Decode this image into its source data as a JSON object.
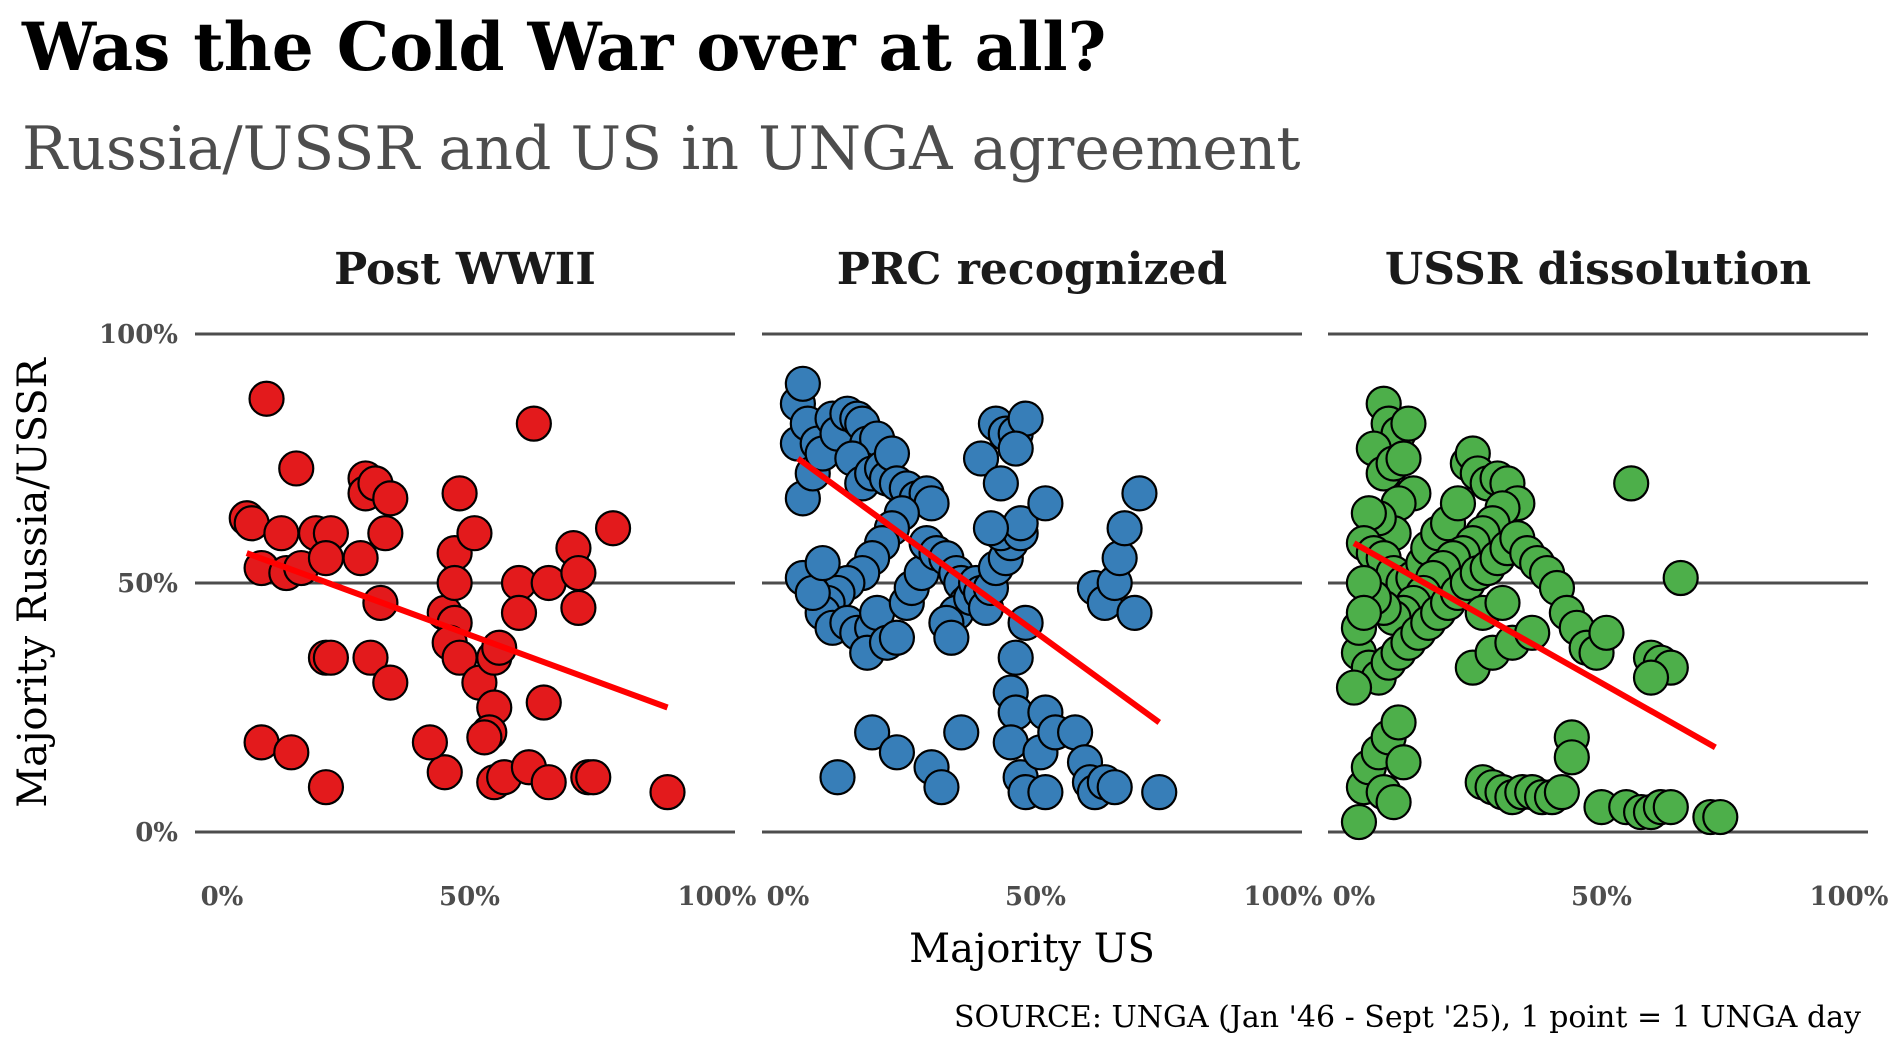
{
  "title": "Was the Cold War over at all?",
  "subtitle": "Russia/USSR and US in UNGA agreement",
  "caption": "SOURCE: UNGA (Jan '46 - Sept '25), 1 point = 1 UNGA day",
  "chart_data": {
    "type": "scatter",
    "xlabel": "Majority US",
    "ylabel": "Majority Russia/USSR",
    "xlim": [
      0,
      100
    ],
    "ylim": [
      0,
      100
    ],
    "x_ticks": [
      "0%",
      "50%",
      "100%"
    ],
    "y_ticks": [
      "0%",
      "50%",
      "100%"
    ],
    "grid": "horizontal",
    "colors": {
      "trend": "#ff0000",
      "grid": "#4d4d4d"
    },
    "panels": [
      {
        "title": "Post WWII",
        "color": "#e31a1c",
        "trend": [
          [
            5,
            56
          ],
          [
            90,
            25
          ]
        ],
        "points": [
          [
            9,
            87
          ],
          [
            5,
            63
          ],
          [
            6,
            62
          ],
          [
            15,
            73
          ],
          [
            12,
            60
          ],
          [
            8,
            53
          ],
          [
            13,
            52
          ],
          [
            16,
            53
          ],
          [
            19,
            60
          ],
          [
            22,
            60
          ],
          [
            21,
            55
          ],
          [
            21,
            35
          ],
          [
            22,
            35
          ],
          [
            28,
            55
          ],
          [
            29,
            71
          ],
          [
            29,
            68
          ],
          [
            31,
            70
          ],
          [
            34,
            67
          ],
          [
            33,
            60
          ],
          [
            32,
            46
          ],
          [
            30,
            35
          ],
          [
            34,
            30
          ],
          [
            45,
            44
          ],
          [
            47,
            42
          ],
          [
            48,
            68
          ],
          [
            47,
            56
          ],
          [
            47,
            50
          ],
          [
            51,
            60
          ],
          [
            46,
            38
          ],
          [
            48,
            35
          ],
          [
            52,
            30
          ],
          [
            55,
            35
          ],
          [
            56,
            37
          ],
          [
            55,
            25
          ],
          [
            54,
            20
          ],
          [
            53,
            19
          ],
          [
            55,
            10
          ],
          [
            57,
            11
          ],
          [
            45,
            12
          ],
          [
            42,
            18
          ],
          [
            63,
            82
          ],
          [
            60,
            50
          ],
          [
            60,
            44
          ],
          [
            66,
            50
          ],
          [
            65,
            26
          ],
          [
            62,
            13
          ],
          [
            66,
            10
          ],
          [
            71,
            57
          ],
          [
            72,
            52
          ],
          [
            72,
            45
          ],
          [
            74,
            11
          ],
          [
            75,
            11
          ],
          [
            79,
            61
          ],
          [
            90,
            8
          ],
          [
            8,
            18
          ],
          [
            14,
            16
          ],
          [
            21,
            9
          ]
        ]
      },
      {
        "title": "PRC recognized",
        "color": "#377eb8",
        "trend": [
          [
            2,
            75
          ],
          [
            75,
            22
          ]
        ],
        "points": [
          [
            2,
            86
          ],
          [
            3,
            90
          ],
          [
            2,
            78
          ],
          [
            4,
            82
          ],
          [
            6,
            78
          ],
          [
            3,
            67
          ],
          [
            5,
            72
          ],
          [
            7,
            76
          ],
          [
            9,
            83
          ],
          [
            10,
            80
          ],
          [
            12,
            84
          ],
          [
            14,
            83
          ],
          [
            15,
            82
          ],
          [
            16,
            78
          ],
          [
            18,
            79
          ],
          [
            13,
            75
          ],
          [
            15,
            70
          ],
          [
            17,
            72
          ],
          [
            19,
            73
          ],
          [
            20,
            71
          ],
          [
            21,
            76
          ],
          [
            22,
            70
          ],
          [
            24,
            69
          ],
          [
            26,
            67
          ],
          [
            28,
            68
          ],
          [
            29,
            66
          ],
          [
            23,
            64
          ],
          [
            21,
            61
          ],
          [
            19,
            58
          ],
          [
            17,
            55
          ],
          [
            15,
            52
          ],
          [
            12,
            50
          ],
          [
            10,
            48
          ],
          [
            8,
            46
          ],
          [
            7,
            44
          ],
          [
            9,
            41
          ],
          [
            12,
            42
          ],
          [
            14,
            40
          ],
          [
            17,
            41
          ],
          [
            18,
            44
          ],
          [
            16,
            36
          ],
          [
            20,
            38
          ],
          [
            22,
            39
          ],
          [
            24,
            46
          ],
          [
            25,
            49
          ],
          [
            27,
            52
          ],
          [
            28,
            58
          ],
          [
            30,
            56
          ],
          [
            32,
            55
          ],
          [
            34,
            52
          ],
          [
            35,
            50
          ],
          [
            36,
            46
          ],
          [
            34,
            44
          ],
          [
            32,
            42
          ],
          [
            33,
            39
          ],
          [
            37,
            47
          ],
          [
            38,
            50
          ],
          [
            39,
            48
          ],
          [
            40,
            45
          ],
          [
            41,
            49
          ],
          [
            42,
            53
          ],
          [
            44,
            55
          ],
          [
            45,
            58
          ],
          [
            43,
            60
          ],
          [
            47,
            60
          ],
          [
            47,
            62
          ],
          [
            41,
            61
          ],
          [
            39,
            75
          ],
          [
            43,
            70
          ],
          [
            42,
            82
          ],
          [
            44,
            80
          ],
          [
            46,
            80
          ],
          [
            48,
            83
          ],
          [
            46,
            77
          ],
          [
            52,
            66
          ],
          [
            48,
            42
          ],
          [
            46,
            35
          ],
          [
            45,
            28
          ],
          [
            46,
            24
          ],
          [
            45,
            18
          ],
          [
            47,
            11
          ],
          [
            48,
            8
          ],
          [
            52,
            8
          ],
          [
            51,
            16
          ],
          [
            52,
            24
          ],
          [
            54,
            20
          ],
          [
            58,
            20
          ],
          [
            60,
            14
          ],
          [
            61,
            10
          ],
          [
            62,
            8
          ],
          [
            64,
            10
          ],
          [
            66,
            9
          ],
          [
            62,
            49
          ],
          [
            64,
            46
          ],
          [
            66,
            50
          ],
          [
            67,
            55
          ],
          [
            68,
            61
          ],
          [
            71,
            68
          ],
          [
            70,
            44
          ],
          [
            75,
            8
          ],
          [
            17,
            20
          ],
          [
            22,
            16
          ],
          [
            29,
            13
          ],
          [
            31,
            9
          ],
          [
            35,
            20
          ],
          [
            10,
            11
          ],
          [
            3,
            51
          ],
          [
            5,
            48
          ],
          [
            7,
            54
          ]
        ]
      },
      {
        "title": "USSR dissolution",
        "color": "#4daf4a",
        "trend": [
          [
            0,
            58
          ],
          [
            73,
            17
          ]
        ],
        "points": [
          [
            6,
            86
          ],
          [
            7,
            82
          ],
          [
            9,
            80
          ],
          [
            11,
            82
          ],
          [
            4,
            77
          ],
          [
            6,
            72
          ],
          [
            8,
            74
          ],
          [
            10,
            75
          ],
          [
            12,
            68
          ],
          [
            9,
            66
          ],
          [
            8,
            60
          ],
          [
            5,
            63
          ],
          [
            3,
            64
          ],
          [
            2,
            58
          ],
          [
            4,
            56
          ],
          [
            6,
            55
          ],
          [
            8,
            52
          ],
          [
            10,
            50
          ],
          [
            12,
            51
          ],
          [
            14,
            54
          ],
          [
            15,
            57
          ],
          [
            17,
            60
          ],
          [
            19,
            62
          ],
          [
            21,
            66
          ],
          [
            23,
            74
          ],
          [
            24,
            76
          ],
          [
            25,
            72
          ],
          [
            27,
            70
          ],
          [
            29,
            71
          ],
          [
            31,
            70
          ],
          [
            33,
            66
          ],
          [
            30,
            65
          ],
          [
            28,
            62
          ],
          [
            26,
            60
          ],
          [
            24,
            58
          ],
          [
            22,
            56
          ],
          [
            20,
            55
          ],
          [
            18,
            53
          ],
          [
            16,
            51
          ],
          [
            14,
            48
          ],
          [
            12,
            46
          ],
          [
            10,
            44
          ],
          [
            8,
            43
          ],
          [
            6,
            45
          ],
          [
            4,
            47
          ],
          [
            2,
            50
          ],
          [
            1,
            36
          ],
          [
            3,
            33
          ],
          [
            5,
            31
          ],
          [
            7,
            34
          ],
          [
            9,
            36
          ],
          [
            11,
            38
          ],
          [
            13,
            40
          ],
          [
            15,
            42
          ],
          [
            17,
            44
          ],
          [
            19,
            46
          ],
          [
            21,
            48
          ],
          [
            23,
            50
          ],
          [
            25,
            52
          ],
          [
            27,
            53
          ],
          [
            29,
            55
          ],
          [
            31,
            57
          ],
          [
            33,
            59
          ],
          [
            35,
            56
          ],
          [
            37,
            54
          ],
          [
            39,
            52
          ],
          [
            41,
            49
          ],
          [
            43,
            44
          ],
          [
            45,
            41
          ],
          [
            47,
            37
          ],
          [
            49,
            36
          ],
          [
            51,
            40
          ],
          [
            60,
            35
          ],
          [
            62,
            34
          ],
          [
            64,
            33
          ],
          [
            66,
            51
          ],
          [
            56,
            70
          ],
          [
            60,
            31
          ],
          [
            44,
            19
          ],
          [
            44,
            15
          ],
          [
            26,
            10
          ],
          [
            28,
            9
          ],
          [
            30,
            8
          ],
          [
            32,
            7
          ],
          [
            34,
            8
          ],
          [
            36,
            8
          ],
          [
            38,
            7
          ],
          [
            40,
            7
          ],
          [
            42,
            8
          ],
          [
            50,
            5
          ],
          [
            55,
            5
          ],
          [
            58,
            4
          ],
          [
            60,
            4
          ],
          [
            62,
            5
          ],
          [
            64,
            5
          ],
          [
            72,
            3
          ],
          [
            74,
            3
          ],
          [
            1,
            2
          ],
          [
            2,
            9
          ],
          [
            3,
            13
          ],
          [
            5,
            16
          ],
          [
            7,
            19
          ],
          [
            9,
            22
          ],
          [
            6,
            8
          ],
          [
            8,
            6
          ],
          [
            10,
            14
          ],
          [
            0,
            29
          ],
          [
            1,
            41
          ],
          [
            2,
            44
          ],
          [
            24,
            33
          ],
          [
            28,
            36
          ],
          [
            32,
            38
          ],
          [
            36,
            40
          ],
          [
            26,
            44
          ],
          [
            30,
            46
          ]
        ]
      }
    ]
  }
}
